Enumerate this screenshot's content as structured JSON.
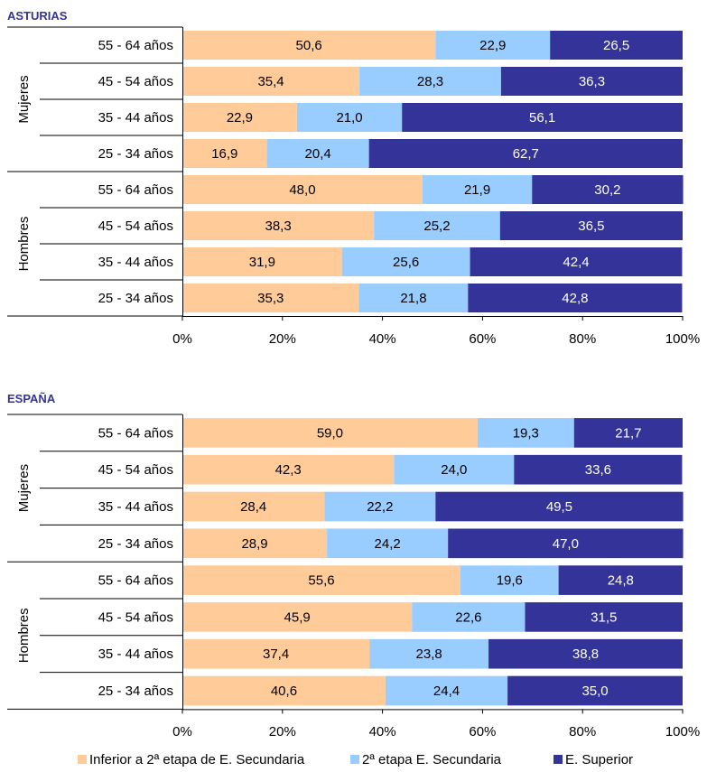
{
  "colors": {
    "inferior": "#FFCC99",
    "segunda": "#99CCFF",
    "superior": "#333399",
    "title": "#333399"
  },
  "legend": [
    {
      "label": "Inferior a 2ª etapa de E. Secundaria",
      "color_key": "inferior"
    },
    {
      "label": "2ª etapa E. Secundaria",
      "color_key": "segunda"
    },
    {
      "label": "E. Superior",
      "color_key": "superior"
    }
  ],
  "chart_data": [
    {
      "type": "bar",
      "stacked": "percent",
      "orientation": "horizontal",
      "title": "ASTURIAS",
      "groups": [
        "Mujeres",
        "Hombres"
      ],
      "categories": [
        "55 - 64 años",
        "45 - 54 años",
        "35 - 44 años",
        "25 - 34 años",
        "55 - 64 años",
        "45 - 54 años",
        "35 - 44 años",
        "25 - 34 años"
      ],
      "series": [
        {
          "name": "Inferior a 2ª etapa de E. Secundaria",
          "values": [
            50.6,
            35.4,
            22.9,
            16.9,
            48.0,
            38.3,
            31.9,
            35.3
          ]
        },
        {
          "name": "2ª etapa E. Secundaria",
          "values": [
            22.9,
            28.3,
            21.0,
            20.4,
            21.9,
            25.2,
            25.6,
            21.8
          ]
        },
        {
          "name": "E. Superior",
          "values": [
            26.5,
            36.3,
            56.1,
            62.7,
            30.2,
            36.5,
            42.4,
            42.8
          ]
        }
      ],
      "labels": [
        [
          "50,6",
          "35,4",
          "22,9",
          "16,9",
          "48,0",
          "38,3",
          "31,9",
          "35,3"
        ],
        [
          "22,9",
          "28,3",
          "21,0",
          "20,4",
          "21,9",
          "25,2",
          "25,6",
          "21,8"
        ],
        [
          "26,5",
          "36,3",
          "56,1",
          "62,7",
          "30,2",
          "36,5",
          "42,4",
          "42,8"
        ]
      ],
      "xticks": [
        "0%",
        "20%",
        "40%",
        "60%",
        "80%",
        "100%"
      ],
      "xlim": [
        0,
        100
      ],
      "grid": false
    },
    {
      "type": "bar",
      "stacked": "percent",
      "orientation": "horizontal",
      "title": "ESPAÑA",
      "groups": [
        "Mujeres",
        "Hombres"
      ],
      "categories": [
        "55 - 64 años",
        "45 - 54 años",
        "35 - 44 años",
        "25 - 34 años",
        "55 - 64 años",
        "45 - 54 años",
        "35 - 44 años",
        "25 - 34 años"
      ],
      "series": [
        {
          "name": "Inferior a 2ª etapa de E. Secundaria",
          "values": [
            59.0,
            42.3,
            28.4,
            28.9,
            55.6,
            45.9,
            37.4,
            40.6
          ]
        },
        {
          "name": "2ª etapa E. Secundaria",
          "values": [
            19.3,
            24.0,
            22.2,
            24.2,
            19.6,
            22.6,
            23.8,
            24.4
          ]
        },
        {
          "name": "E. Superior",
          "values": [
            21.7,
            33.6,
            49.5,
            47.0,
            24.8,
            31.5,
            38.8,
            35.0
          ]
        }
      ],
      "labels": [
        [
          "59,0",
          "42,3",
          "28,4",
          "28,9",
          "55,6",
          "45,9",
          "37,4",
          "40,6"
        ],
        [
          "19,3",
          "24,0",
          "22,2",
          "24,2",
          "19,6",
          "22,6",
          "23,8",
          "24,4"
        ],
        [
          "21,7",
          "33,6",
          "49,5",
          "47,0",
          "24,8",
          "31,5",
          "38,8",
          "35,0"
        ]
      ],
      "xticks": [
        "0%",
        "20%",
        "40%",
        "60%",
        "80%",
        "100%"
      ],
      "xlim": [
        0,
        100
      ],
      "grid": false
    }
  ]
}
